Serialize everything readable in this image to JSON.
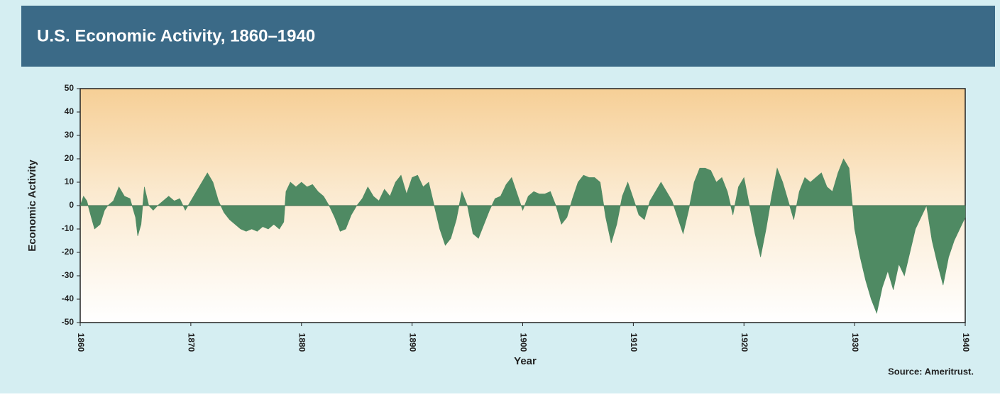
{
  "chart_data": {
    "type": "area",
    "title": "U.S. Economic Activity, 1860–1940",
    "xlabel": "Year",
    "ylabel": "Economic Activity",
    "source": "Source: Ameritrust.",
    "color": "#4f8a63",
    "xlim": [
      1860,
      1940
    ],
    "xticks": [
      1860,
      1870,
      1880,
      1890,
      1900,
      1910,
      1920,
      1930,
      1940
    ],
    "ylim": [
      -50,
      50
    ],
    "yticks": [
      -50,
      -40,
      -30,
      -20,
      -10,
      0,
      10,
      20,
      30,
      40,
      50
    ],
    "x": [
      1860,
      1860.3,
      1860.6,
      1861,
      1861.3,
      1861.8,
      1862.2,
      1862.5,
      1863,
      1863.5,
      1864,
      1864.5,
      1865,
      1865.2,
      1865.5,
      1865.8,
      1866.2,
      1866.6,
      1867,
      1867.5,
      1868,
      1868.5,
      1869,
      1869.5,
      1870,
      1870.5,
      1871,
      1871.5,
      1872,
      1872.5,
      1873,
      1873.5,
      1874,
      1874.5,
      1875,
      1875.5,
      1876,
      1876.5,
      1877,
      1877.5,
      1878,
      1878.4,
      1878.6,
      1879,
      1879.5,
      1880,
      1880.5,
      1881,
      1881.5,
      1882,
      1882.5,
      1883,
      1883.5,
      1884,
      1884.5,
      1885,
      1885.5,
      1886,
      1886.5,
      1887,
      1887.5,
      1888,
      1888.5,
      1889,
      1889.5,
      1890,
      1890.5,
      1891,
      1891.5,
      1892,
      1892.5,
      1893,
      1893.5,
      1894,
      1894.5,
      1895,
      1895.5,
      1896,
      1896.5,
      1897,
      1897.5,
      1898,
      1898.5,
      1899,
      1899.5,
      1900,
      1900.5,
      1901,
      1901.5,
      1902,
      1902.5,
      1903,
      1903.5,
      1904,
      1904.5,
      1905,
      1905.5,
      1906,
      1906.5,
      1907,
      1907.5,
      1908,
      1908.5,
      1909,
      1909.5,
      1910,
      1910.5,
      1911,
      1911.5,
      1912,
      1912.5,
      1913,
      1913.5,
      1914,
      1914.5,
      1915,
      1915.5,
      1916,
      1916.5,
      1917,
      1917.5,
      1918,
      1918.5,
      1919,
      1919.5,
      1920,
      1920.5,
      1921,
      1921.5,
      1922,
      1922.5,
      1923,
      1923.5,
      1924,
      1924.5,
      1925,
      1925.5,
      1926,
      1926.5,
      1927,
      1927.5,
      1928,
      1928.5,
      1929,
      1929.5,
      1930,
      1930.5,
      1931,
      1931.5,
      1932,
      1932.5,
      1933,
      1933.5,
      1934,
      1934.5,
      1935,
      1935.5,
      1936,
      1936.5,
      1937,
      1937.5,
      1938,
      1938.5,
      1939,
      1939.5,
      1940
    ],
    "values": [
      0,
      4,
      2,
      -5,
      -10,
      -8,
      -2,
      0,
      2,
      8,
      4,
      3,
      -5,
      -13,
      -8,
      8,
      0,
      -2,
      0,
      2,
      4,
      2,
      3,
      -2,
      2,
      6,
      10,
      14,
      10,
      2,
      -3,
      -6,
      -8,
      -10,
      -11,
      -10,
      -11,
      -9,
      -10,
      -8,
      -10,
      -7,
      6,
      10,
      8,
      10,
      8,
      9,
      6,
      4,
      0,
      -5,
      -11,
      -10,
      -4,
      0,
      3,
      8,
      4,
      2,
      7,
      4,
      10,
      13,
      5,
      12,
      13,
      8,
      10,
      0,
      -10,
      -17,
      -14,
      -6,
      6,
      0,
      -12,
      -14,
      -8,
      -2,
      3,
      4,
      9,
      12,
      5,
      -2,
      4,
      6,
      5,
      5,
      6,
      0,
      -8,
      -5,
      3,
      10,
      13,
      12,
      12,
      10,
      -5,
      -16,
      -8,
      4,
      10,
      3,
      -4,
      -6,
      2,
      6,
      10,
      6,
      2,
      -5,
      -12,
      -2,
      10,
      16,
      16,
      15,
      10,
      12,
      6,
      -4,
      8,
      12,
      0,
      -12,
      -22,
      -10,
      4,
      16,
      10,
      2,
      -6,
      6,
      12,
      10,
      12,
      14,
      8,
      6,
      14,
      20,
      16,
      -10,
      -22,
      -32,
      -40,
      -46,
      -35,
      -28,
      -36,
      -25,
      -30,
      -20,
      -10,
      -5,
      0,
      -15,
      -25,
      -34,
      -22,
      -15,
      -10,
      -5
    ]
  }
}
